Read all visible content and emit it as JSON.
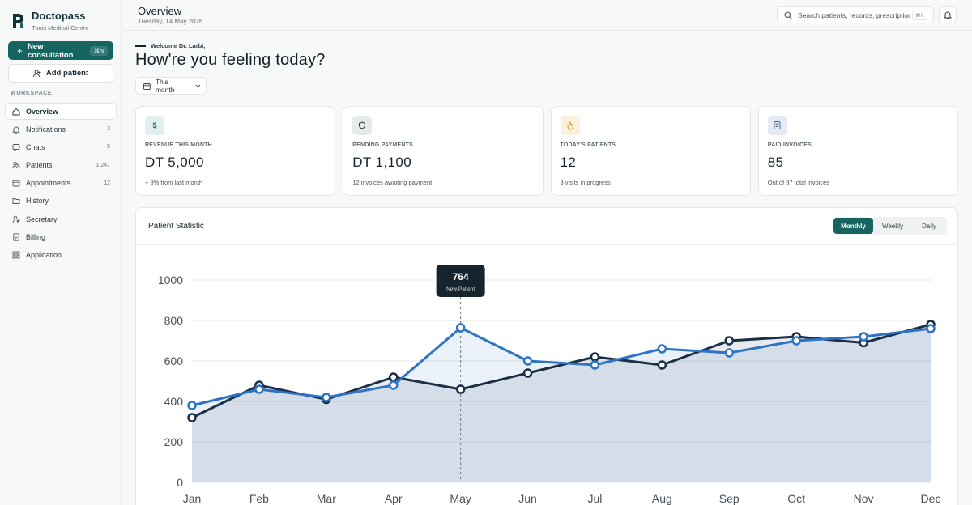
{
  "brand": {
    "name": "Doctopass",
    "subtitle": "Tunis Medical Centre"
  },
  "sidebar": {
    "new_consultation": {
      "label": "New consultation",
      "shortcut": "⌘N"
    },
    "add_patient": "Add patient",
    "section_label": "WORKSPACE",
    "items": [
      {
        "label": "Overview",
        "count": "",
        "icon": "home-icon",
        "active": true
      },
      {
        "label": "Notifications",
        "count": "3",
        "icon": "bell-icon"
      },
      {
        "label": "Chats",
        "count": "5",
        "icon": "chat-icon"
      },
      {
        "label": "Patients",
        "count": "1,247",
        "icon": "users-icon"
      },
      {
        "label": "Appointments",
        "count": "12",
        "icon": "calendar-icon"
      },
      {
        "label": "History",
        "count": "",
        "icon": "folder-icon"
      },
      {
        "label": "Secretary",
        "count": "",
        "icon": "user-star-icon"
      },
      {
        "label": "Billing",
        "count": "",
        "icon": "document-icon"
      },
      {
        "label": "Application",
        "count": "",
        "icon": "grid-icon"
      }
    ]
  },
  "header": {
    "title": "Overview",
    "date": "Tuesday, 14 May 2026",
    "search_placeholder": "Search patients, records, prescriptions",
    "search_shortcut": "⌘K"
  },
  "welcome": {
    "greeting": "Welcome Dr. Larbi,",
    "headline": "How're you feeling today?"
  },
  "period_select": "This month",
  "cards": [
    {
      "icon": "dollar-icon",
      "icon_text": "$",
      "icon_bg": "#e3eeee",
      "icon_color": "#15645f",
      "label": "REVENUE THIS MONTH",
      "value": "DT 5,000",
      "note": "+ 8% from last month"
    },
    {
      "icon": "shield-icon",
      "icon_text": "",
      "icon_bg": "#e6eaeb",
      "icon_color": "#2f3a41",
      "label": "PENDING PAYMENTS",
      "value": "DT 1,100",
      "note": "12 invoices awaiting payment"
    },
    {
      "icon": "hand-icon",
      "icon_text": "",
      "icon_bg": "#fbf0dc",
      "icon_color": "#c98a1c",
      "label": "TODAY'S PATIENTS",
      "value": "12",
      "note": "3 visits in progress"
    },
    {
      "icon": "invoice-icon",
      "icon_text": "",
      "icon_bg": "#e4ebf5",
      "icon_color": "#3b5a86",
      "label": "PAID INVOICES",
      "value": "85",
      "note": "Out of 97 total invoices"
    }
  ],
  "statistic": {
    "title": "Patient Statistic",
    "tabs": [
      {
        "label": "Monthly",
        "active": true
      },
      {
        "label": "Weekly",
        "active": false
      },
      {
        "label": "Daily",
        "active": false
      }
    ],
    "tooltip": {
      "value": "764",
      "label": "New Patient"
    }
  },
  "chart_data": {
    "type": "line",
    "categories": [
      "Jan",
      "Feb",
      "Mar",
      "Apr",
      "May",
      "Jun",
      "Jul",
      "Aug",
      "Sep",
      "Oct",
      "Nov",
      "Dec"
    ],
    "series": [
      {
        "values": [
          320,
          480,
          410,
          520,
          460,
          540,
          620,
          580,
          700,
          720,
          690,
          780
        ],
        "color": "#1b2f48",
        "fill": true
      },
      {
        "values": [
          380,
          460,
          420,
          480,
          764,
          600,
          580,
          660,
          640,
          700,
          720,
          760
        ],
        "color": "#2f73c6",
        "fill": true
      }
    ],
    "ylim": [
      0,
      1000
    ],
    "yticks": [
      "0",
      "200",
      "400",
      "600",
      "800",
      "1000"
    ],
    "grid": true,
    "highlight_index": 4,
    "highlight_series": 1
  }
}
